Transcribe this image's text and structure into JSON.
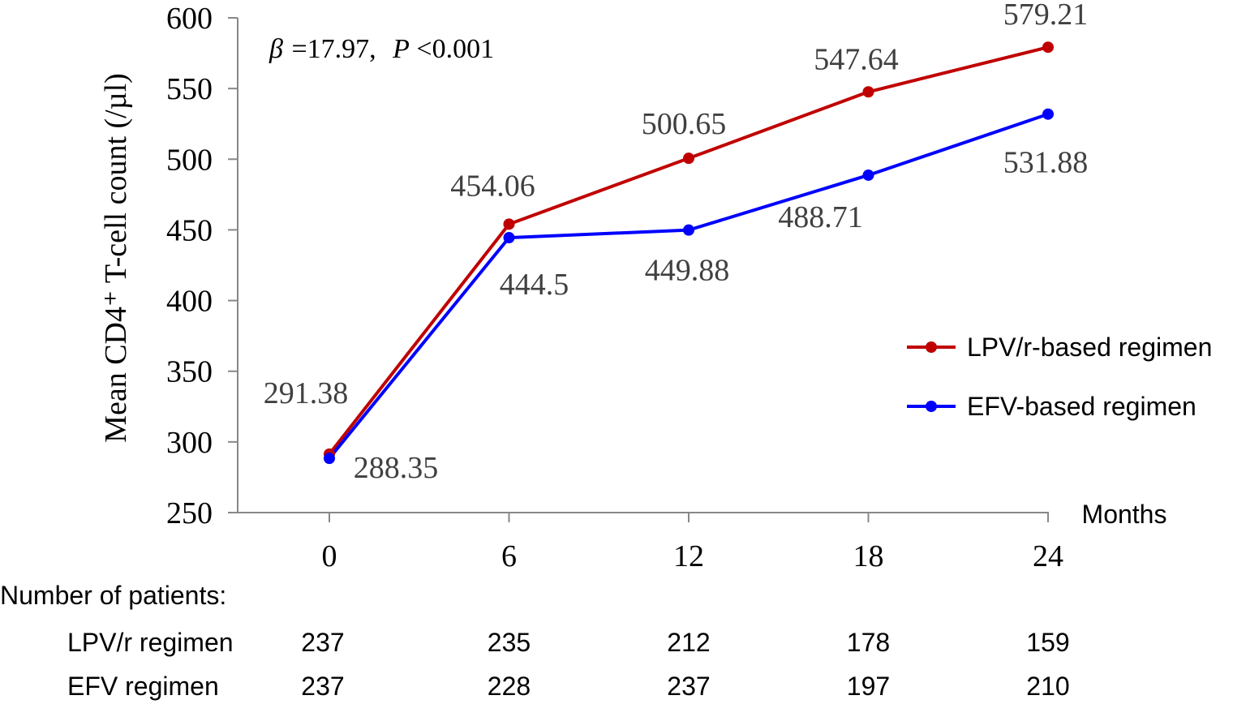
{
  "chart_data": {
    "type": "line",
    "x": [
      0,
      6,
      12,
      18,
      24
    ],
    "xlabel": "Months",
    "ylabel": "Mean CD4⁺ T-cell count (/µl)",
    "ylim": [
      250,
      600
    ],
    "yticks": [
      250,
      300,
      350,
      400,
      450,
      500,
      550,
      600
    ],
    "grid": false,
    "legend_position": "right",
    "annotation": {
      "beta_symbol": "β",
      "beta_text": "=17.97,",
      "p_symbol": "P",
      "p_text": "<0.001"
    },
    "series": [
      {
        "name": "LPV/r-based regimen",
        "color": "#C00000",
        "values": [
          291.38,
          454.06,
          500.65,
          547.64,
          579.21
        ],
        "labels": [
          "291.38",
          "454.06",
          "500.65",
          "547.64",
          "579.21"
        ]
      },
      {
        "name": "EFV-based regimen",
        "color": "#0000FF",
        "values": [
          288.35,
          444.5,
          449.88,
          488.71,
          531.88
        ],
        "labels": [
          "288.35",
          "444.5",
          "449.88",
          "488.71",
          "531.88"
        ]
      }
    ]
  },
  "patients_table": {
    "title": "Number of patients:",
    "rows": [
      {
        "label": "LPV/r regimen",
        "values": [
          "237",
          "235",
          "212",
          "178",
          "159"
        ]
      },
      {
        "label": "EFV regimen",
        "values": [
          "237",
          "228",
          "237",
          "197",
          "210"
        ]
      }
    ]
  }
}
